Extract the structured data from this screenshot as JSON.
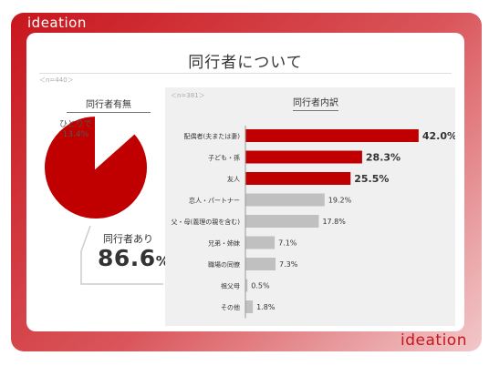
{
  "branding": {
    "logo_top": "ideation",
    "logo_bottom": "ideation"
  },
  "page": {
    "title": "同行者について"
  },
  "pie": {
    "title": "同行者有無",
    "sample_size": "＜n=440＞",
    "slices": [
      {
        "label": "同行者あり",
        "value": 86.6,
        "color": "#c00000"
      },
      {
        "label": "ひとりで",
        "value": 13.4,
        "color": "#ffffff"
      }
    ],
    "small_label_name": "ひとりで",
    "small_label_value": "13.4%",
    "big_label_name": "同行者あり",
    "big_label_number": "86.6",
    "big_label_unit": "%"
  },
  "chart_data": {
    "type": "bar",
    "orientation": "horizontal",
    "title": "同行者内訳",
    "sample_size": "＜n=381＞",
    "categories": [
      "配偶者(夫または妻)",
      "子ども・孫",
      "友人",
      "恋人・パートナー",
      "父・母(義理の親を含む)",
      "兄弟・姉妹",
      "職場の同僚",
      "祖父母",
      "その他"
    ],
    "values": [
      42.0,
      28.3,
      25.5,
      19.2,
      17.8,
      7.1,
      7.3,
      0.5,
      1.8
    ],
    "value_labels": [
      "42.0%",
      "28.3%",
      "25.5%",
      "19.2%",
      "17.8%",
      "7.1%",
      "7.3%",
      "0.5%",
      "1.8%"
    ],
    "highlight_count": 3,
    "colors": {
      "highlight": "#c00000",
      "other": "#c0c0c0"
    },
    "xlim": [
      0,
      50
    ],
    "grid": false
  }
}
